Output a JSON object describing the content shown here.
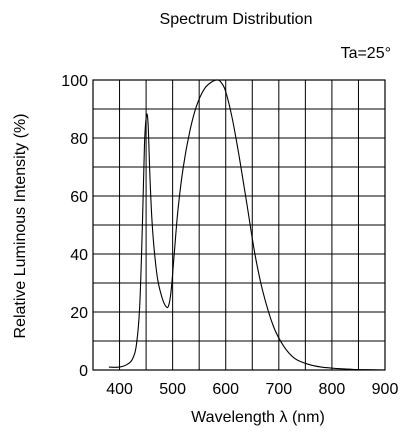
{
  "chart_data": {
    "type": "line",
    "title": "Spectrum Distribution",
    "annotation": "Ta=25°",
    "xlabel": "Wavelength  λ (nm)",
    "ylabel": "Relative Luminous Intensity  (%)",
    "xlim": [
      350,
      900
    ],
    "ylim": [
      0,
      100
    ],
    "x_ticks": [
      400,
      500,
      600,
      700,
      800,
      900
    ],
    "y_ticks": [
      0,
      20,
      40,
      60,
      80,
      100
    ],
    "x_tick_labels": [
      "400",
      "500",
      "600",
      "700",
      "800",
      "900"
    ],
    "y_tick_labels": [
      "0",
      "20",
      "40",
      "60",
      "80",
      "100"
    ],
    "grid": true,
    "series": [
      {
        "color": "#000000",
        "x": [
          380,
          400,
          415,
          425,
          432,
          438,
          443,
          447,
          451,
          454,
          457,
          461,
          466,
          472,
          480,
          487,
          492,
          497,
          503,
          510,
          520,
          532,
          545,
          560,
          575,
          585,
          592,
          600,
          612,
          625,
          640,
          655,
          670,
          690,
          710,
          730,
          755,
          780,
          810,
          840,
          870,
          900
        ],
        "y": [
          1,
          1,
          2,
          4,
          9,
          22,
          50,
          78,
          88,
          84,
          68,
          52,
          40,
          31,
          25,
          22,
          22,
          27,
          40,
          55,
          70,
          82,
          91,
          97,
          99.5,
          100,
          99,
          96,
          87,
          74,
          57,
          40,
          27,
          15,
          8,
          4,
          2,
          1,
          0.5,
          0.2,
          0.1,
          0
        ]
      }
    ]
  }
}
